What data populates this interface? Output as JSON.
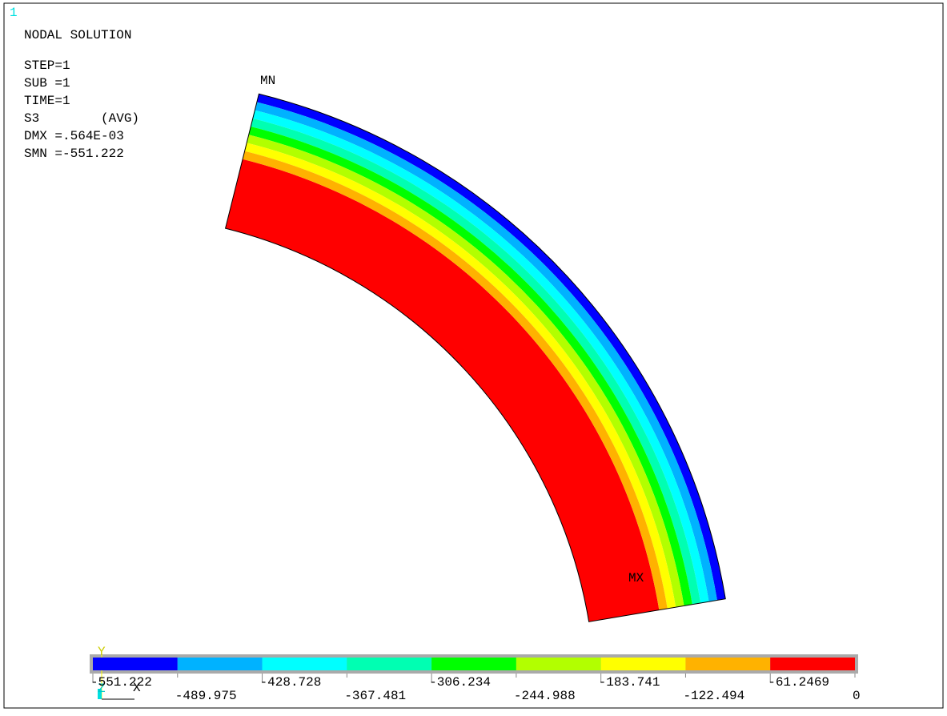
{
  "window_number": "1",
  "header": {
    "title": "NODAL SOLUTION",
    "info": [
      "STEP=1",
      "SUB =1",
      "TIME=1",
      "S3        (AVG)",
      "DMX =.564E-03",
      "SMN =-551.222"
    ]
  },
  "labels": {
    "min": "MN",
    "max": "MX"
  },
  "legend": {
    "colors": [
      "#0000ff",
      "#00b2ff",
      "#00ffff",
      "#00ffb2",
      "#00ff00",
      "#b2ff00",
      "#ffff00",
      "#ffb200",
      "#ff0000"
    ],
    "labels": [
      "-551.222",
      "-489.975",
      "-428.728",
      "-367.481",
      "-306.234",
      "-244.988",
      "-183.741",
      "-122.494",
      "-61.2469",
      "0"
    ]
  },
  "triad": {
    "x": "X",
    "y": "Y",
    "z": "Z"
  }
}
